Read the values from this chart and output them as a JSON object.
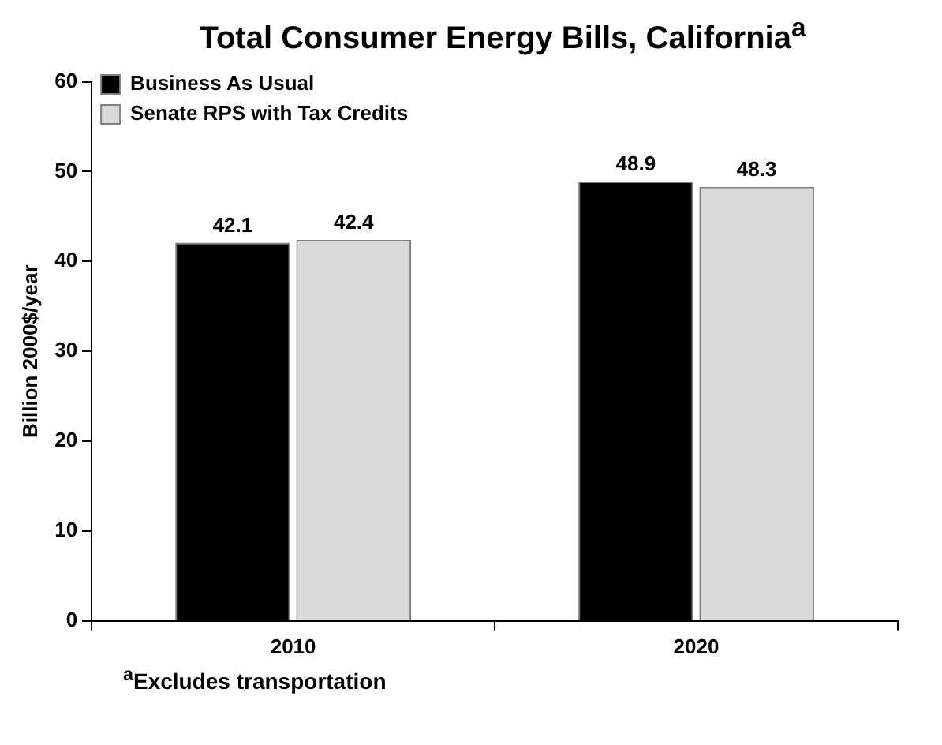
{
  "chart_data": {
    "type": "bar",
    "title": "Total Consumer Energy Bills, California$^{a}$",
    "ylabel": "Billion 2000$/year",
    "categories": [
      "2010",
      "2020"
    ],
    "series": [
      {
        "name": "Business As Usual",
        "color": "#000000",
        "values": [
          42.1,
          48.9
        ]
      },
      {
        "name": "Senate RPS with Tax Credits",
        "color": "#d9d9d9",
        "values": [
          42.4,
          48.3
        ]
      }
    ],
    "ylim": [
      0,
      60
    ],
    "yticks": [
      0,
      10,
      20,
      30,
      40,
      50,
      60
    ],
    "grid": false,
    "legend": "top left",
    "data_labels": true,
    "annotations": [
      "$^{a}$Excludes transportation"
    ]
  }
}
